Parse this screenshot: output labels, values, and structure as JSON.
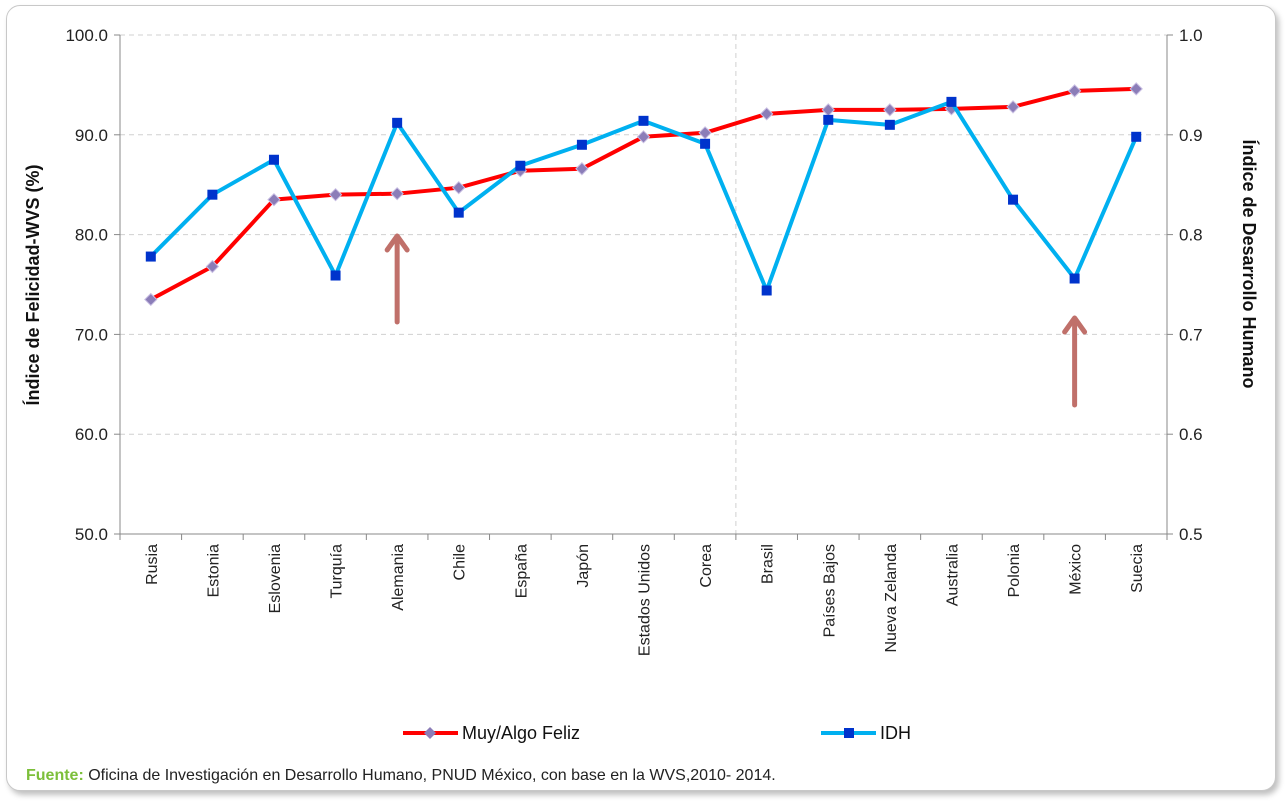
{
  "chart_data": {
    "type": "line",
    "categories": [
      "Rusia",
      "Estonia",
      "Eslovenia",
      "Turquía",
      "Alemania",
      "Chile",
      "España",
      "Japón",
      "Estados Unidos",
      "Corea",
      "Brasil",
      "Países Bajos",
      "Nueva Zelanda",
      "Australia",
      "Polonia",
      "México",
      "Suecia"
    ],
    "series": [
      {
        "name": "Muy/Algo Feliz",
        "axis": "left",
        "color": "#ff0000",
        "marker": "diamond",
        "marker_color": "#8b7db8",
        "values": [
          73.5,
          76.8,
          83.5,
          84.0,
          84.1,
          84.7,
          86.4,
          86.6,
          89.8,
          90.2,
          92.1,
          92.5,
          92.5,
          92.6,
          92.8,
          94.4,
          94.6
        ]
      },
      {
        "name": "IDH",
        "axis": "right",
        "color": "#00b0f0",
        "marker": "square",
        "marker_color": "#0033cc",
        "values": [
          0.778,
          0.84,
          0.875,
          0.759,
          0.912,
          0.822,
          0.869,
          0.89,
          0.914,
          0.891,
          0.744,
          0.915,
          0.91,
          0.933,
          0.835,
          0.756,
          0.898
        ]
      }
    ],
    "ylabel": "Índice  de Felicidad-WVS  (%)",
    "y2label": "Índice  de Desarrollo Humano",
    "ylim": [
      50,
      100
    ],
    "y2lim": [
      0.5,
      1.0
    ],
    "yticks": [
      "50.0",
      "60.0",
      "70.0",
      "80.0",
      "90.0",
      "100.0"
    ],
    "y2ticks": [
      "0.5",
      "0.6",
      "0.7",
      "0.8",
      "0.9",
      "1.0"
    ],
    "grid": true,
    "legend_position": "bottom",
    "annotations": [
      {
        "type": "arrow",
        "category": "Alemania",
        "color": "#c0706a"
      },
      {
        "type": "arrow",
        "category": "México",
        "color": "#c0706a"
      }
    ]
  },
  "source": {
    "label": "Fuente:",
    "text": " Oficina de Investigación en Desarrollo Humano, PNUD México, con base en la WVS,2010- 2014."
  }
}
